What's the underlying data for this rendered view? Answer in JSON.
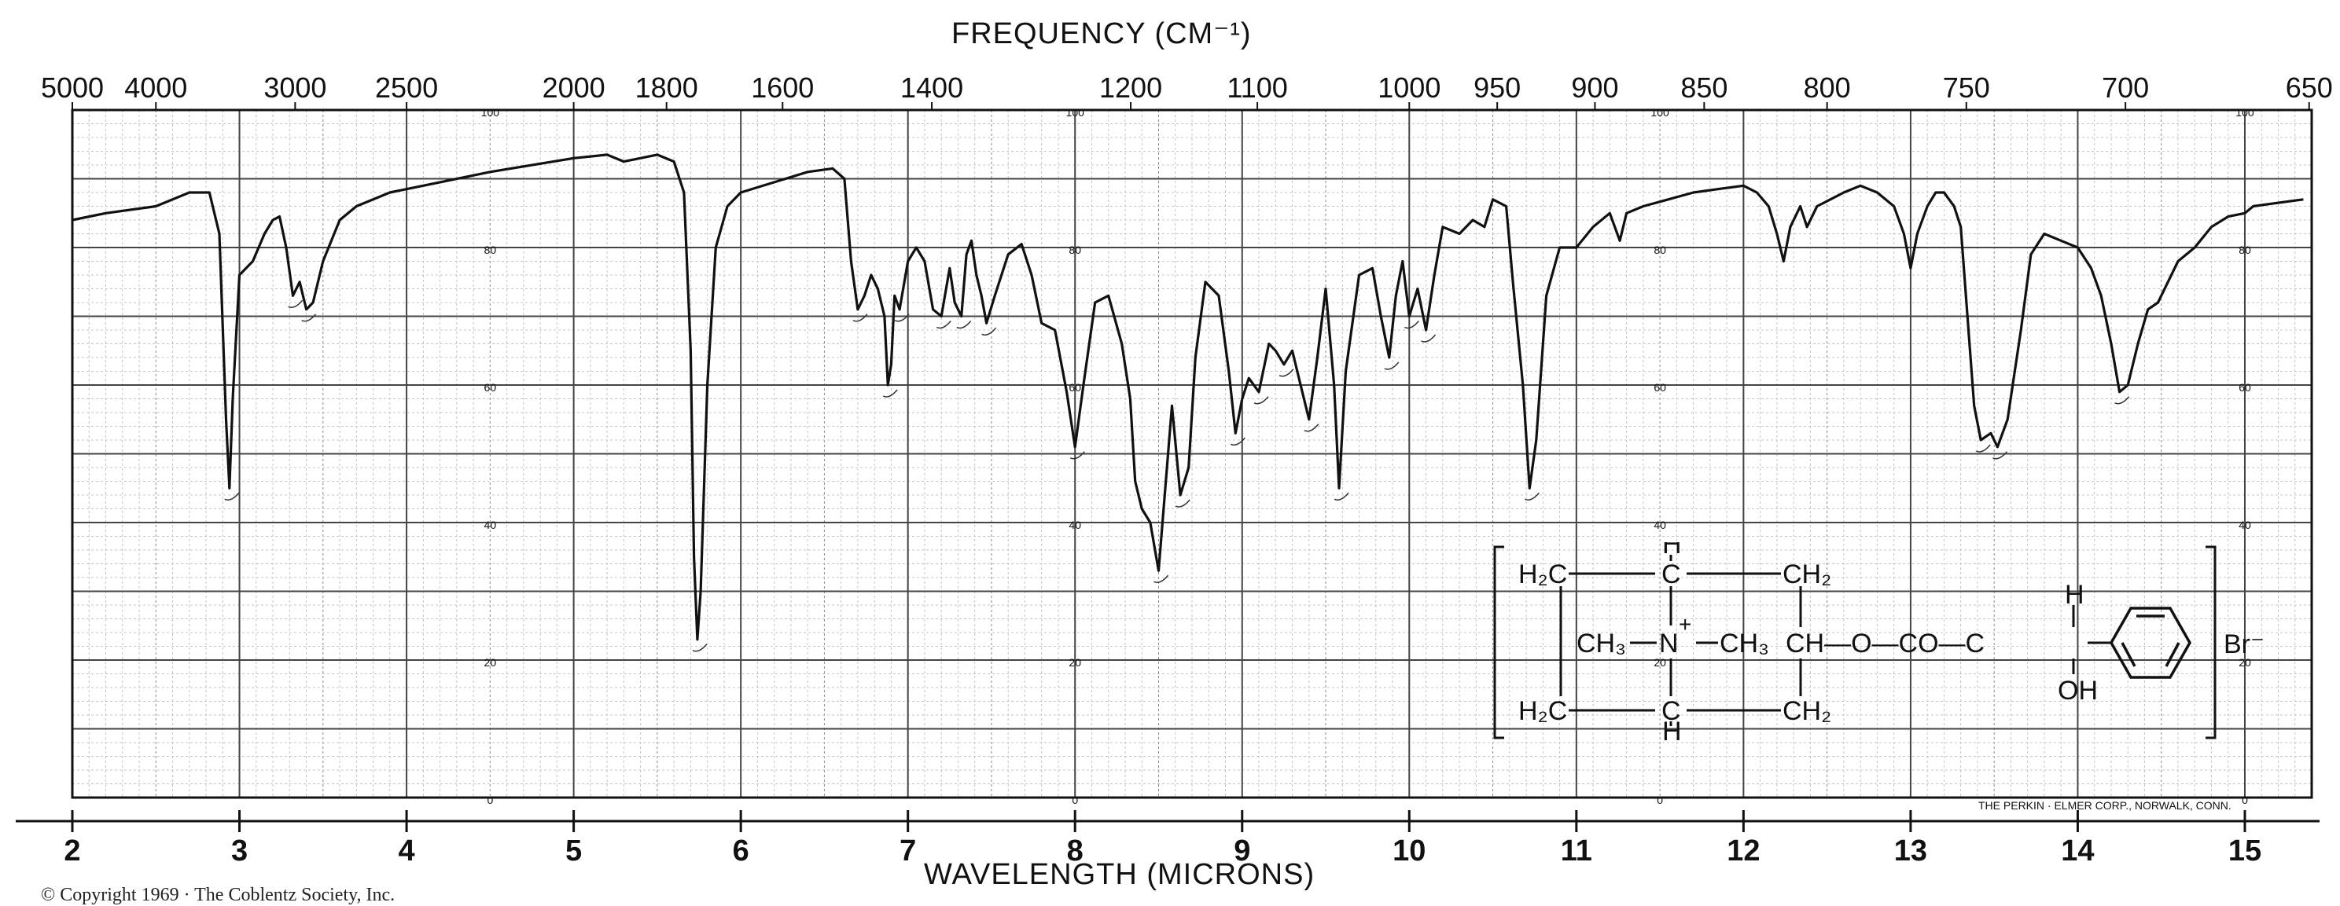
{
  "chart_data": {
    "type": "line",
    "title": "",
    "xlabel": "WAVELENGTH (MICRONS)",
    "x2label": "FREQUENCY (CM⁻¹)",
    "ylabel": "",
    "xlim": [
      2,
      15.4
    ],
    "ylim": [
      0,
      100
    ],
    "grid": true,
    "x_ticks": [
      "2",
      "3",
      "4",
      "5",
      "6",
      "7",
      "8",
      "9",
      "10",
      "11",
      "12",
      "13",
      "14",
      "15"
    ],
    "x2_ticks": [
      {
        "label": "5000",
        "cm": 5000
      },
      {
        "label": "4000",
        "cm": 4000
      },
      {
        "label": "3000",
        "cm": 3000
      },
      {
        "label": "2500",
        "cm": 2500
      },
      {
        "label": "2000",
        "cm": 2000
      },
      {
        "label": "1800",
        "cm": 1800
      },
      {
        "label": "1600",
        "cm": 1600
      },
      {
        "label": "1400",
        "cm": 1400
      },
      {
        "label": "1200",
        "cm": 1200
      },
      {
        "label": "1100",
        "cm": 1100
      },
      {
        "label": "1000",
        "cm": 1000
      },
      {
        "label": "950",
        "cm": 950
      },
      {
        "label": "900",
        "cm": 900
      },
      {
        "label": "850",
        "cm": 850
      },
      {
        "label": "800",
        "cm": 800
      },
      {
        "label": "750",
        "cm": 750
      },
      {
        "label": "700",
        "cm": 700
      },
      {
        "label": "650",
        "cm": 650
      }
    ],
    "y_scale_labels": [
      "100",
      "80",
      "60",
      "40",
      "20",
      "0"
    ],
    "y_scale_label_x": [
      4.5,
      8.0,
      11.5,
      15.0
    ],
    "series": [
      {
        "name": "",
        "color": "#111111",
        "points": [
          [
            2.0,
            84.0
          ],
          [
            2.2,
            85.0
          ],
          [
            2.5,
            86.0
          ],
          [
            2.7,
            88.0
          ],
          [
            2.82,
            88.0
          ],
          [
            2.88,
            82.0
          ],
          [
            2.92,
            55.0
          ],
          [
            2.94,
            45.0
          ],
          [
            2.96,
            58.0
          ],
          [
            3.0,
            76.0
          ],
          [
            3.08,
            78.0
          ],
          [
            3.15,
            82.0
          ],
          [
            3.2,
            84.0
          ],
          [
            3.24,
            84.5
          ],
          [
            3.28,
            80.0
          ],
          [
            3.32,
            73.0
          ],
          [
            3.36,
            75.0
          ],
          [
            3.4,
            71.0
          ],
          [
            3.44,
            72.0
          ],
          [
            3.5,
            78.0
          ],
          [
            3.6,
            84.0
          ],
          [
            3.7,
            86.0
          ],
          [
            3.9,
            88.0
          ],
          [
            4.2,
            89.5
          ],
          [
            4.5,
            91.0
          ],
          [
            5.0,
            93.0
          ],
          [
            5.2,
            93.5
          ],
          [
            5.3,
            92.5
          ],
          [
            5.5,
            93.5
          ],
          [
            5.6,
            92.5
          ],
          [
            5.66,
            88.0
          ],
          [
            5.7,
            65.0
          ],
          [
            5.72,
            35.0
          ],
          [
            5.74,
            23.0
          ],
          [
            5.76,
            30.0
          ],
          [
            5.8,
            60.0
          ],
          [
            5.85,
            80.0
          ],
          [
            5.92,
            86.0
          ],
          [
            6.0,
            88.0
          ],
          [
            6.2,
            89.5
          ],
          [
            6.4,
            91.0
          ],
          [
            6.55,
            91.5
          ],
          [
            6.62,
            90.0
          ],
          [
            6.66,
            78.0
          ],
          [
            6.7,
            71.0
          ],
          [
            6.74,
            73.0
          ],
          [
            6.78,
            76.0
          ],
          [
            6.82,
            74.0
          ],
          [
            6.86,
            70.0
          ],
          [
            6.88,
            60.0
          ],
          [
            6.9,
            63.0
          ],
          [
            6.92,
            73.0
          ],
          [
            6.95,
            71.0
          ],
          [
            7.0,
            78.0
          ],
          [
            7.05,
            80.0
          ],
          [
            7.1,
            78.0
          ],
          [
            7.15,
            71.0
          ],
          [
            7.2,
            70.0
          ],
          [
            7.25,
            77.0
          ],
          [
            7.28,
            72.0
          ],
          [
            7.32,
            70.0
          ],
          [
            7.35,
            79.0
          ],
          [
            7.38,
            81.0
          ],
          [
            7.41,
            76.0
          ],
          [
            7.44,
            73.0
          ],
          [
            7.47,
            69.0
          ],
          [
            7.52,
            73.0
          ],
          [
            7.6,
            79.0
          ],
          [
            7.68,
            80.5
          ],
          [
            7.74,
            76.0
          ],
          [
            7.8,
            69.0
          ],
          [
            7.88,
            68.0
          ],
          [
            7.95,
            59.0
          ],
          [
            8.0,
            51.0
          ],
          [
            8.05,
            60.0
          ],
          [
            8.12,
            72.0
          ],
          [
            8.2,
            73.0
          ],
          [
            8.28,
            66.0
          ],
          [
            8.33,
            58.0
          ],
          [
            8.36,
            46.0
          ],
          [
            8.4,
            42.0
          ],
          [
            8.45,
            40.0
          ],
          [
            8.5,
            33.0
          ],
          [
            8.54,
            45.0
          ],
          [
            8.58,
            57.0
          ],
          [
            8.63,
            44.0
          ],
          [
            8.68,
            48.0
          ],
          [
            8.72,
            64.0
          ],
          [
            8.78,
            75.0
          ],
          [
            8.86,
            73.0
          ],
          [
            8.92,
            62.0
          ],
          [
            8.96,
            53.0
          ],
          [
            9.0,
            58.0
          ],
          [
            9.04,
            61.0
          ],
          [
            9.1,
            59.0
          ],
          [
            9.16,
            66.0
          ],
          [
            9.2,
            65.0
          ],
          [
            9.25,
            63.0
          ],
          [
            9.3,
            65.0
          ],
          [
            9.35,
            60.0
          ],
          [
            9.4,
            55.0
          ],
          [
            9.45,
            64.0
          ],
          [
            9.5,
            74.0
          ],
          [
            9.55,
            60.0
          ],
          [
            9.58,
            45.0
          ],
          [
            9.62,
            62.0
          ],
          [
            9.7,
            76.0
          ],
          [
            9.78,
            77.0
          ],
          [
            9.83,
            70.0
          ],
          [
            9.88,
            64.0
          ],
          [
            9.92,
            73.0
          ],
          [
            9.96,
            78.0
          ],
          [
            10.0,
            70.0
          ],
          [
            10.05,
            74.0
          ],
          [
            10.1,
            68.0
          ],
          [
            10.15,
            76.0
          ],
          [
            10.2,
            83.0
          ],
          [
            10.3,
            82.0
          ],
          [
            10.38,
            84.0
          ],
          [
            10.45,
            83.0
          ],
          [
            10.5,
            87.0
          ],
          [
            10.58,
            86.0
          ],
          [
            10.62,
            75.0
          ],
          [
            10.68,
            60.0
          ],
          [
            10.72,
            45.0
          ],
          [
            10.76,
            52.0
          ],
          [
            10.82,
            73.0
          ],
          [
            10.9,
            80.0
          ],
          [
            11.0,
            80.0
          ],
          [
            11.1,
            83.0
          ],
          [
            11.2,
            85.0
          ],
          [
            11.26,
            81.0
          ],
          [
            11.3,
            85.0
          ],
          [
            11.4,
            86.0
          ],
          [
            11.55,
            87.0
          ],
          [
            11.7,
            88.0
          ],
          [
            11.85,
            88.5
          ],
          [
            12.0,
            89.0
          ],
          [
            12.08,
            88.0
          ],
          [
            12.15,
            86.0
          ],
          [
            12.2,
            82.0
          ],
          [
            12.24,
            78.0
          ],
          [
            12.28,
            83.0
          ],
          [
            12.34,
            86.0
          ],
          [
            12.38,
            83.0
          ],
          [
            12.44,
            86.0
          ],
          [
            12.52,
            87.0
          ],
          [
            12.6,
            88.0
          ],
          [
            12.7,
            89.0
          ],
          [
            12.8,
            88.0
          ],
          [
            12.9,
            86.0
          ],
          [
            12.96,
            82.0
          ],
          [
            13.0,
            77.0
          ],
          [
            13.04,
            82.0
          ],
          [
            13.1,
            86.0
          ],
          [
            13.15,
            88.0
          ],
          [
            13.2,
            88.0
          ],
          [
            13.26,
            86.0
          ],
          [
            13.3,
            83.0
          ],
          [
            13.34,
            70.0
          ],
          [
            13.38,
            57.0
          ],
          [
            13.42,
            52.0
          ],
          [
            13.48,
            53.0
          ],
          [
            13.52,
            51.0
          ],
          [
            13.58,
            55.0
          ],
          [
            13.66,
            68.0
          ],
          [
            13.72,
            79.0
          ],
          [
            13.8,
            82.0
          ],
          [
            13.9,
            81.0
          ],
          [
            14.0,
            80.0
          ],
          [
            14.08,
            77.0
          ],
          [
            14.14,
            73.0
          ],
          [
            14.2,
            66.0
          ],
          [
            14.25,
            59.0
          ],
          [
            14.3,
            60.0
          ],
          [
            14.36,
            66.0
          ],
          [
            14.42,
            71.0
          ],
          [
            14.48,
            72.0
          ],
          [
            14.52,
            74.0
          ],
          [
            14.6,
            78.0
          ],
          [
            14.7,
            80.0
          ],
          [
            14.8,
            83.0
          ],
          [
            14.9,
            84.5
          ],
          [
            15.0,
            85.0
          ],
          [
            15.05,
            86.0
          ],
          [
            15.2,
            86.5
          ],
          [
            15.35,
            87.0
          ]
        ]
      }
    ],
    "annotations": [
      "THE PERKIN · ELMER CORP., NORWALK, CONN."
    ]
  },
  "frequency_title": "FREQUENCY (CM⁻¹)",
  "wavelength_title": "WAVELENGTH (MICRONS)",
  "copyright": "© Copyright 1969 · The Coblentz Society, Inc.",
  "maker": "THE PERKIN · ELMER CORP., NORWALK, CONN.",
  "structure": {
    "h2c_top": "H₂C",
    "h_top": "H",
    "c_top": "C",
    "ch2_top": "CH₂",
    "ch3_left": "CH₃",
    "n_plus": "N",
    "plus": "+",
    "ch3_right": "CH₃",
    "ch_chain": "CH—O—CO—C",
    "h_right": "H",
    "oh": "OH",
    "h2c_bottom": "H₂C",
    "c_bottom": "C",
    "h_bottom": "H",
    "ch2_bottom": "CH₂",
    "counter_ion": "Br⁻"
  }
}
